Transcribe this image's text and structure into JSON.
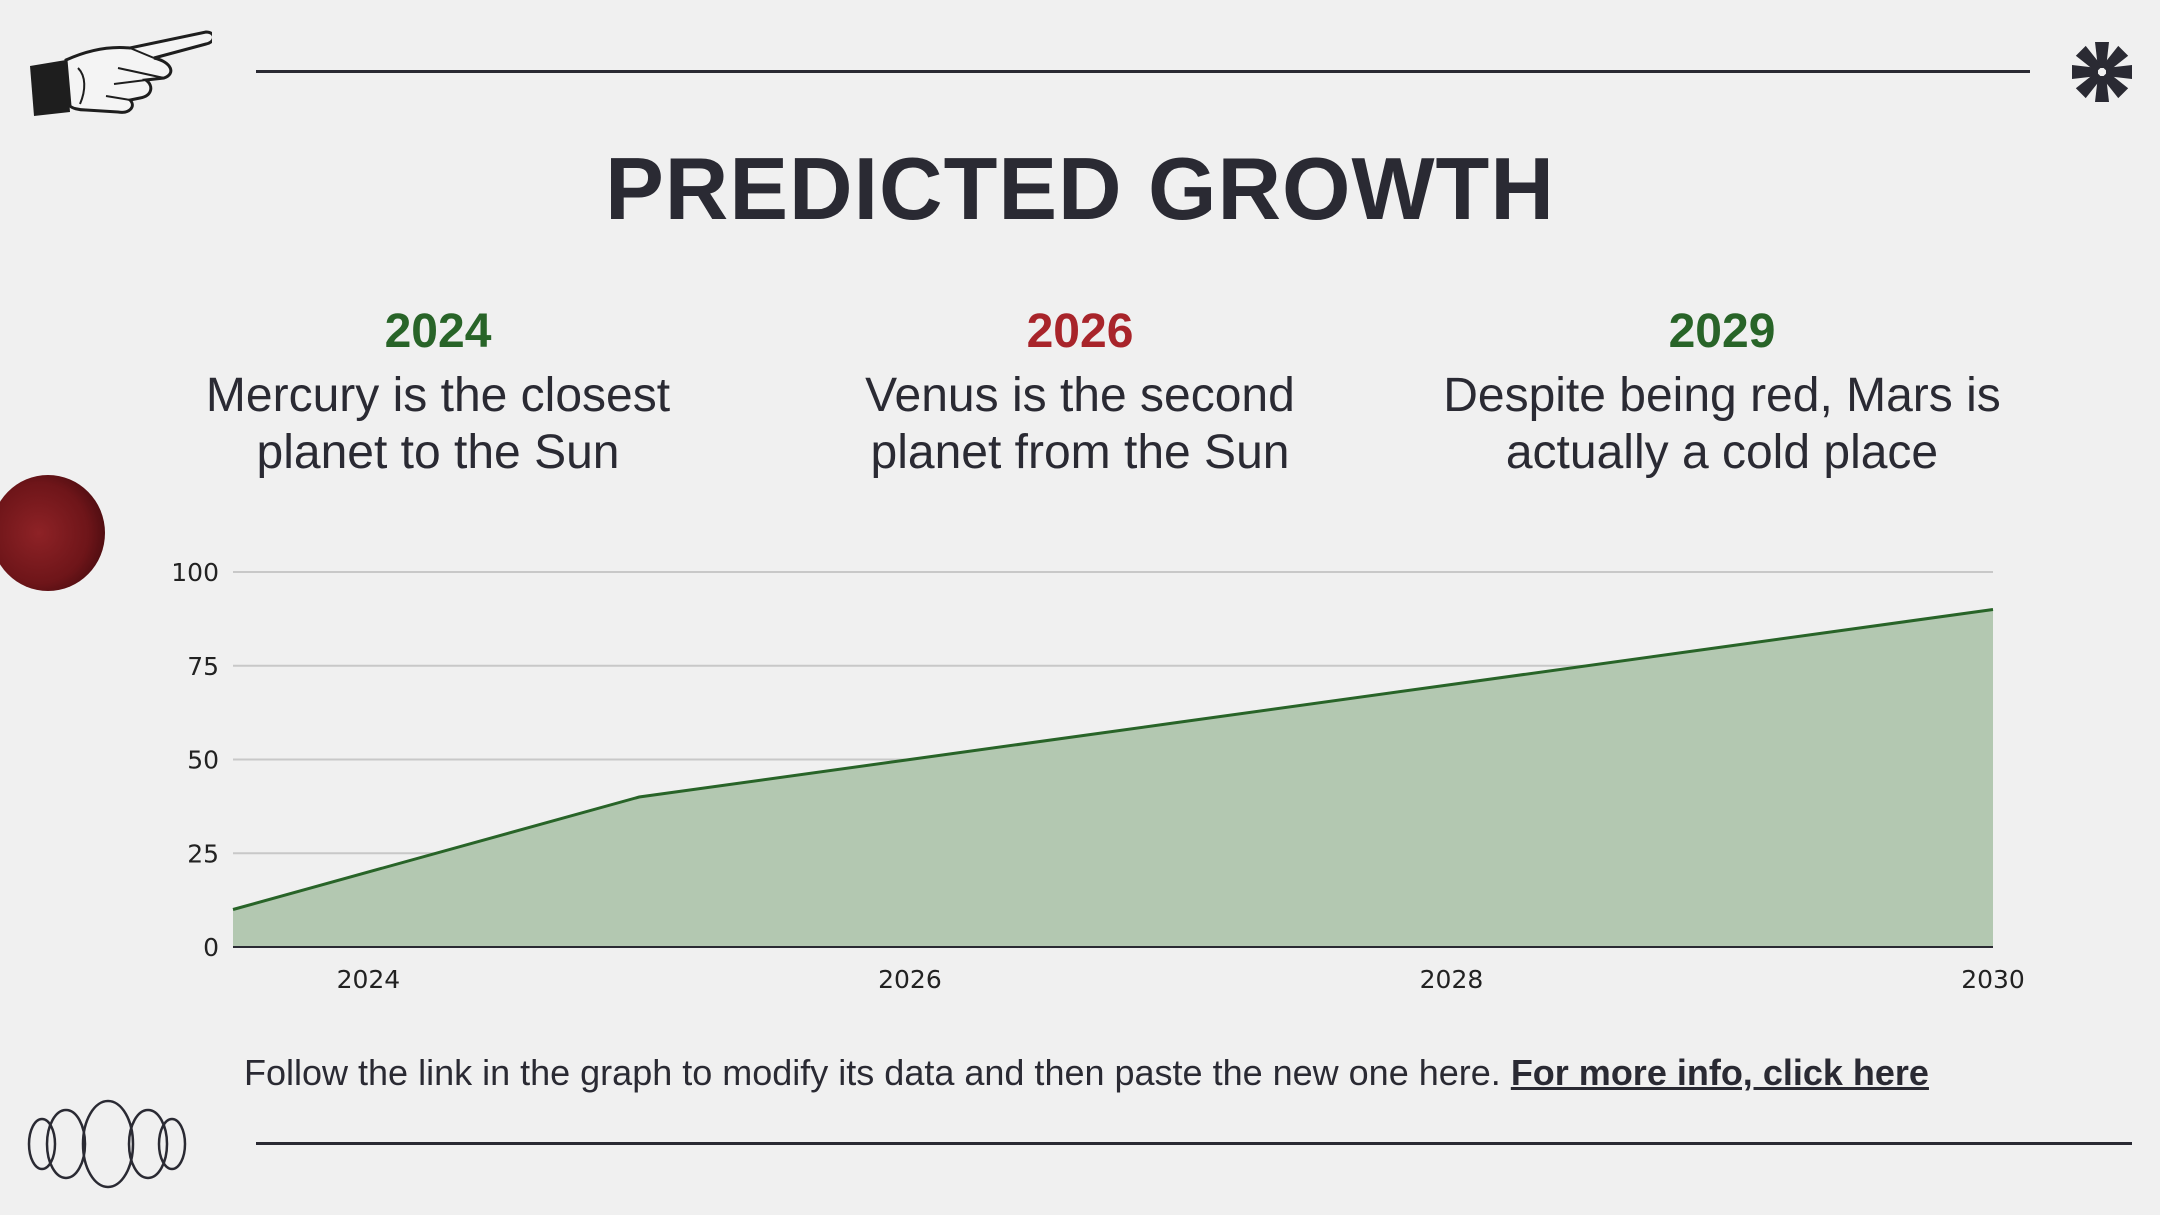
{
  "title": "PREDICTED GROWTH",
  "columns": [
    {
      "year": "2024",
      "year_color": "#286428",
      "text": "Mercury is the closest planet to the Sun"
    },
    {
      "year": "2026",
      "year_color": "#a8242a",
      "text": "Venus is the second planet from the Sun"
    },
    {
      "year": "2029",
      "year_color": "#286428",
      "text": "Despite being red, Mars is actually a cold place"
    }
  ],
  "footer": {
    "text": "Follow the link in the graph to modify its data and then paste the new one here.",
    "link": "For more info, click here"
  },
  "colors": {
    "text": "#2a2a33",
    "accent_green": "#286428",
    "accent_red": "#a8242a",
    "area_fill": "#b3c8b1",
    "background": "#f0f0f0"
  },
  "icons": [
    "pointing-hand-icon",
    "asterisk-icon",
    "red-planet-icon",
    "ellipse-rings-icon"
  ],
  "chart_data": {
    "type": "area",
    "x": [
      2023.5,
      2025,
      2026,
      2027,
      2028,
      2029,
      2030
    ],
    "values": [
      10,
      40,
      50,
      60,
      70,
      80,
      90
    ],
    "xticks": [
      "2024",
      "2026",
      "2028",
      "2030"
    ],
    "xtick_values": [
      2024,
      2026,
      2028,
      2030
    ],
    "yticks": [
      "0",
      "25",
      "50",
      "75",
      "100"
    ],
    "ytick_values": [
      0,
      25,
      50,
      75,
      100
    ],
    "xlim": [
      2023.5,
      2030
    ],
    "ylim": [
      0,
      100
    ],
    "grid": true,
    "line_color": "#286428",
    "fill_color": "#b3c8b1"
  }
}
